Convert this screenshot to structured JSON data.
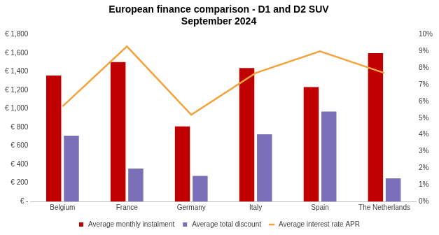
{
  "chart_data": {
    "type": "bar",
    "title": "European finance comparison - D1 and D2 SUV",
    "subtitle": "September 2024",
    "categories": [
      "Belgium",
      "France",
      "Germany",
      "Italy",
      "Spain",
      "The Netherlands"
    ],
    "series": [
      {
        "name": "Average monthly instalment",
        "type": "bar",
        "color": "#c00000",
        "values": [
          1360,
          1505,
          810,
          1440,
          1235,
          1600
        ]
      },
      {
        "name": "Average total discount",
        "type": "bar",
        "color": "#7b6fba",
        "values": [
          710,
          355,
          275,
          725,
          970,
          250
        ]
      },
      {
        "name": "Average interest rate APR",
        "type": "line",
        "color": "#f5a33c",
        "axis": "y2",
        "values": [
          5.7,
          9.3,
          5.2,
          7.7,
          9.0,
          7.7
        ]
      }
    ],
    "ylim": [
      0,
      1800
    ],
    "yticks": [
      {
        "value": 0,
        "label": "€ -"
      },
      {
        "value": 200,
        "label": "€ 200"
      },
      {
        "value": 400,
        "label": "€ 400"
      },
      {
        "value": 600,
        "label": "€ 600"
      },
      {
        "value": 800,
        "label": "€ 800"
      },
      {
        "value": 1000,
        "label": "€ 1,000"
      },
      {
        "value": 1200,
        "label": "€ 1,200"
      },
      {
        "value": 1400,
        "label": "€ 1,400"
      },
      {
        "value": 1600,
        "label": "€ 1,600"
      },
      {
        "value": 1800,
        "label": "€ 1,800"
      }
    ],
    "y2lim": [
      0,
      10
    ],
    "y2ticks": [
      {
        "value": 0,
        "label": "0%"
      },
      {
        "value": 1,
        "label": "1%"
      },
      {
        "value": 2,
        "label": "2%"
      },
      {
        "value": 3,
        "label": "3%"
      },
      {
        "value": 4,
        "label": "4%"
      },
      {
        "value": 5,
        "label": "5%"
      },
      {
        "value": 6,
        "label": "6%"
      },
      {
        "value": 7,
        "label": "7%"
      },
      {
        "value": 8,
        "label": "8%"
      },
      {
        "value": 9,
        "label": "9%"
      },
      {
        "value": 10,
        "label": "10%"
      }
    ],
    "grid": false,
    "legend": "bottom"
  }
}
